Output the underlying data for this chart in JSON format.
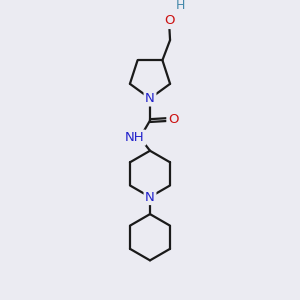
{
  "bg_color": "#ebebf2",
  "bond_color": "#1a1a1a",
  "N_color": "#2222cc",
  "O_color": "#cc1111",
  "H_color": "#4488aa",
  "line_width": 1.6,
  "font_size_atom": 9.5,
  "fig_bg": "#ebebf2",
  "xlim": [
    0,
    10
  ],
  "ylim": [
    0,
    14
  ]
}
